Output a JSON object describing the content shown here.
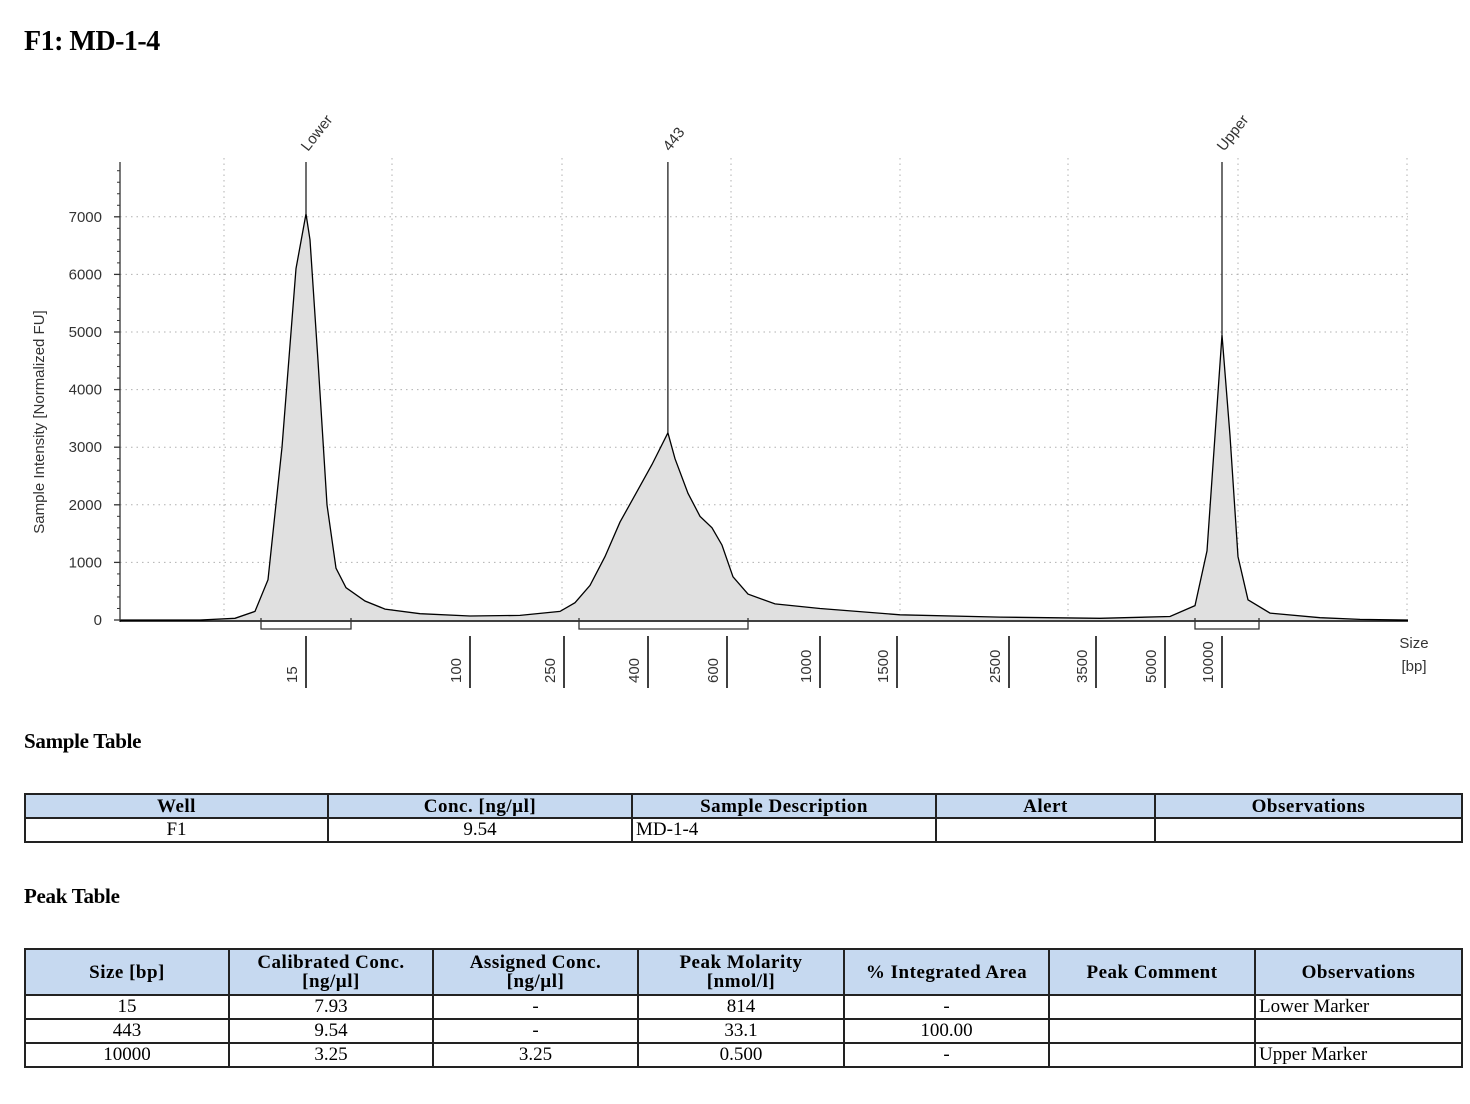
{
  "page": {
    "title": "F1: MD-1-4"
  },
  "chart_data": {
    "type": "line",
    "ylabel": "Sample Intensity [Normalized FU]",
    "xlabel": "Size",
    "xunit": "[bp]",
    "yticks": [
      0,
      1000,
      2000,
      3000,
      4000,
      5000,
      6000,
      7000
    ],
    "ylim": [
      0,
      8000
    ],
    "xticks": [
      "15",
      "100",
      "250",
      "400",
      "600",
      "1000",
      "1500",
      "2500",
      "3500",
      "5000",
      "10000"
    ],
    "grid": true,
    "peaks": [
      {
        "label": "Lower",
        "size": 15,
        "height": 7050
      },
      {
        "label": "443",
        "size": 443,
        "height": 3250
      },
      {
        "label": "Upper",
        "size": 10000,
        "height": 4950
      }
    ],
    "series": [
      {
        "x": [
          15,
          100,
          250,
          400,
          443,
          600,
          1000,
          1500,
          2500,
          3500,
          5000,
          10000
        ],
        "y": [
          7050,
          60,
          200,
          2200,
          3250,
          1500,
          200,
          80,
          40,
          20,
          50,
          4950
        ]
      }
    ]
  },
  "sample_section": {
    "title": "Sample Table"
  },
  "sample_table": {
    "headers": [
      "Well",
      "Conc. [ng/µl]",
      "Sample Description",
      "Alert",
      "Observations"
    ],
    "row": {
      "well": "F1",
      "conc": "9.54",
      "description": "MD-1-4",
      "alert": "",
      "observations": ""
    }
  },
  "peak_section": {
    "title": "Peak Table"
  },
  "peak_table": {
    "headers": [
      {
        "line1": "Size [bp]",
        "line2": ""
      },
      {
        "line1": "Calibrated Conc.",
        "line2": "[ng/µl]"
      },
      {
        "line1": "Assigned Conc.",
        "line2": "[ng/µl]"
      },
      {
        "line1": "Peak Molarity",
        "line2": "[nmol/l]"
      },
      {
        "line1": "% Integrated Area",
        "line2": ""
      },
      {
        "line1": "Peak Comment",
        "line2": ""
      },
      {
        "line1": "Observations",
        "line2": ""
      }
    ],
    "rows": [
      {
        "size": "15",
        "calibrated": "7.93",
        "assigned": "-",
        "molarity": "814",
        "area": "-",
        "comment": "",
        "observations": "Lower Marker"
      },
      {
        "size": "443",
        "calibrated": "9.54",
        "assigned": "-",
        "molarity": "33.1",
        "area": "100.00",
        "comment": "",
        "observations": ""
      },
      {
        "size": "10000",
        "calibrated": "3.25",
        "assigned": "3.25",
        "molarity": "0.500",
        "area": "-",
        "comment": "",
        "observations": "Upper Marker"
      }
    ]
  }
}
